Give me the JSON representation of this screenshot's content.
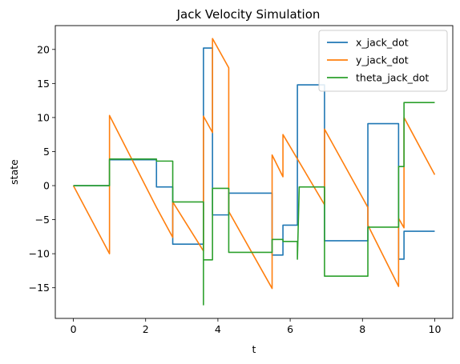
{
  "chart_data": {
    "type": "line",
    "title": "Jack Velocity Simulation",
    "xlabel": "t",
    "ylabel": "state",
    "xlim": [
      -0.5,
      10.5
    ],
    "ylim": [
      -19.5,
      23.5
    ],
    "xticks": [
      0,
      2,
      4,
      6,
      8,
      10
    ],
    "yticks": [
      -15,
      -10,
      -5,
      0,
      5,
      10,
      15,
      20
    ],
    "grid": false,
    "legend_position": "upper right",
    "series": [
      {
        "name": "x_jack_dot",
        "color": "#1f77b4",
        "points": [
          [
            0,
            0
          ],
          [
            1,
            0
          ],
          [
            1,
            3.8
          ],
          [
            2.3,
            3.8
          ],
          [
            2.3,
            -0.2
          ],
          [
            2.75,
            -0.2
          ],
          [
            2.75,
            -8.6
          ],
          [
            3.6,
            -8.6
          ],
          [
            3.6,
            20.2
          ],
          [
            3.85,
            20.2
          ],
          [
            3.85,
            -4.3
          ],
          [
            4.3,
            -4.3
          ],
          [
            4.3,
            -1.1
          ],
          [
            5.5,
            -1.1
          ],
          [
            5.5,
            -10.2
          ],
          [
            5.8,
            -10.2
          ],
          [
            5.8,
            -5.8
          ],
          [
            6.2,
            -5.8
          ],
          [
            6.2,
            14.8
          ],
          [
            6.95,
            14.8
          ],
          [
            6.95,
            -8.1
          ],
          [
            8.15,
            -8.1
          ],
          [
            8.15,
            9.1
          ],
          [
            9.0,
            9.1
          ],
          [
            9.0,
            -10.8
          ],
          [
            9.15,
            -10.8
          ],
          [
            9.15,
            -6.7
          ],
          [
            10,
            -6.7
          ]
        ]
      },
      {
        "name": "y_jack_dot",
        "color": "#ff7f0e",
        "points": [
          [
            0,
            0
          ],
          [
            1,
            -10
          ],
          [
            1,
            10.3
          ],
          [
            2.3,
            -3.2
          ],
          [
            2.75,
            -7.6
          ],
          [
            2.75,
            -2.4
          ],
          [
            3.6,
            -9.6
          ],
          [
            3.6,
            10.2
          ],
          [
            3.85,
            7.8
          ],
          [
            3.85,
            21.6
          ],
          [
            4.3,
            17.3
          ],
          [
            4.3,
            -3.8
          ],
          [
            5.5,
            -15.1
          ],
          [
            5.5,
            4.5
          ],
          [
            5.8,
            1.3
          ],
          [
            5.8,
            7.5
          ],
          [
            6.95,
            -2.8
          ],
          [
            6.95,
            8.3
          ],
          [
            8.15,
            -3.2
          ],
          [
            8.15,
            -5.8
          ],
          [
            9.0,
            -14.8
          ],
          [
            9.0,
            -4.8
          ],
          [
            9.15,
            -6.2
          ],
          [
            9.15,
            10.0
          ],
          [
            10,
            1.6
          ]
        ]
      },
      {
        "name": "theta_jack_dot",
        "color": "#2ca02c",
        "points": [
          [
            0,
            0
          ],
          [
            1,
            0
          ],
          [
            1,
            3.9
          ],
          [
            2.3,
            3.9
          ],
          [
            2.3,
            3.6
          ],
          [
            2.75,
            3.6
          ],
          [
            2.75,
            -2.4
          ],
          [
            3.6,
            -2.4
          ],
          [
            3.6,
            -17.5
          ],
          [
            3.6,
            -10.9
          ],
          [
            3.85,
            -10.9
          ],
          [
            3.85,
            -0.4
          ],
          [
            4.3,
            -0.4
          ],
          [
            4.3,
            -9.8
          ],
          [
            5.5,
            -9.8
          ],
          [
            5.5,
            -7.9
          ],
          [
            5.8,
            -7.9
          ],
          [
            5.8,
            -8.2
          ],
          [
            6.2,
            -8.2
          ],
          [
            6.2,
            -10.8
          ],
          [
            6.25,
            -0.2
          ],
          [
            6.95,
            -0.2
          ],
          [
            6.95,
            -13.3
          ],
          [
            8.15,
            -13.3
          ],
          [
            8.15,
            -6.1
          ],
          [
            9.0,
            -6.1
          ],
          [
            9.0,
            2.8
          ],
          [
            9.15,
            2.8
          ],
          [
            9.15,
            12.2
          ],
          [
            10,
            12.2
          ]
        ]
      }
    ]
  }
}
